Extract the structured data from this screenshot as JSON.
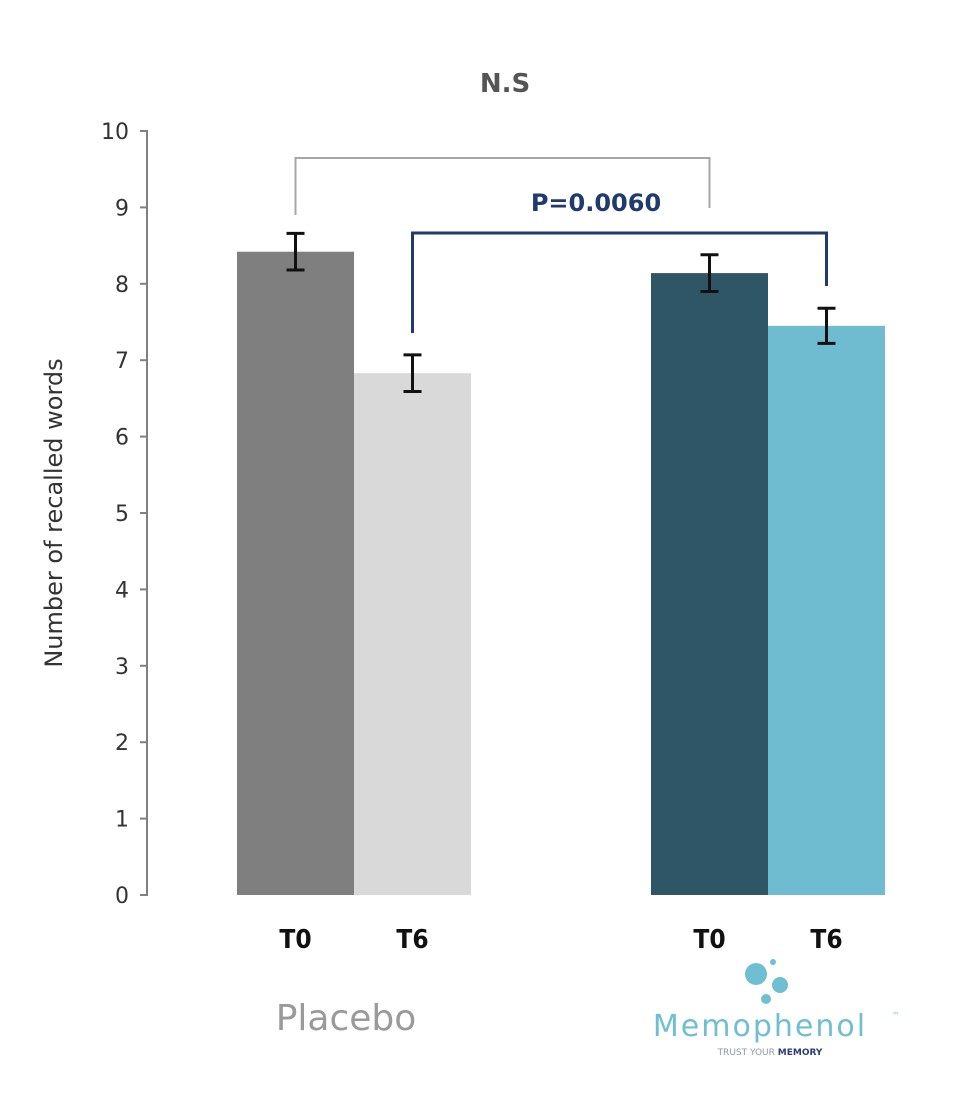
{
  "chart_data": {
    "type": "bar",
    "title": "",
    "xlabel": "",
    "ylabel": "Number of recalled words",
    "ylim": [
      0,
      10
    ],
    "yticks": [
      "0",
      "1",
      "2",
      "3",
      "4",
      "5",
      "6",
      "7",
      "8",
      "9",
      "10"
    ],
    "grid": false,
    "groups": [
      {
        "name": "Placebo",
        "bars": [
          {
            "category": "T0",
            "value": 8.42,
            "error": 0.24,
            "color": "#7f7f7f"
          },
          {
            "category": "T6",
            "value": 6.83,
            "error": 0.24,
            "color": "#d9d9d9"
          }
        ]
      },
      {
        "name": "Memophenol",
        "bars": [
          {
            "category": "T0",
            "value": 8.14,
            "error": 0.24,
            "color": "#2f5666"
          },
          {
            "category": "T6",
            "value": 7.45,
            "error": 0.23,
            "color": "#6fbcd0"
          }
        ]
      }
    ],
    "annotations": [
      {
        "label": "N.S",
        "from": "Placebo T0",
        "to": "Memophenol T0",
        "color": "#a6a6a6",
        "text_color": "#555555"
      },
      {
        "label": "P=0.0060",
        "from": "Placebo T6",
        "to": "Memophenol T6",
        "color": "#1f3a6e",
        "text_color": "#1f3a6e"
      }
    ]
  },
  "labels": {
    "placebo": "Placebo",
    "logo": {
      "word": "Memophenol",
      "tm": "™",
      "tagline_a": "TRUST YOUR ",
      "tagline_b": "MEMORY"
    }
  }
}
